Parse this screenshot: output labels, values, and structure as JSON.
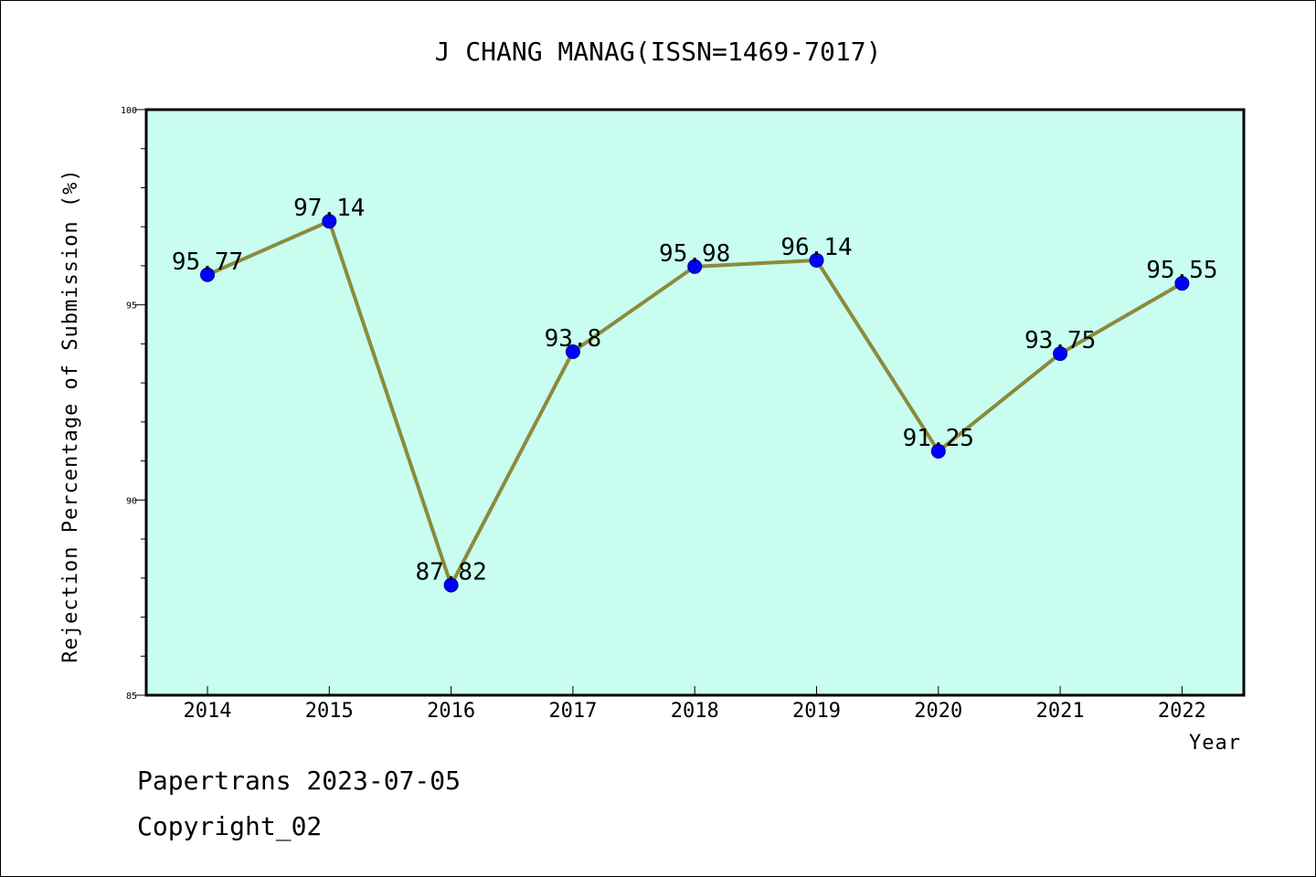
{
  "chart_data": {
    "type": "line",
    "title": "J CHANG MANAG(ISSN=1469-7017)",
    "xlabel": "Year",
    "ylabel": "Rejection Percentage of Submission (%)",
    "categories": [
      "2014",
      "2015",
      "2016",
      "2017",
      "2018",
      "2019",
      "2020",
      "2021",
      "2022"
    ],
    "values": [
      95.77,
      97.14,
      87.82,
      93.8,
      95.98,
      96.14,
      91.25,
      93.75,
      95.55
    ],
    "data_labels": [
      "95.77",
      "97.14",
      "87.82",
      "93.8",
      "95.98",
      "96.14",
      "91.25",
      "93.75",
      "95.55"
    ],
    "ylim": [
      85,
      100
    ],
    "yticks": [
      "85",
      "90",
      "95",
      "100"
    ],
    "grid": false,
    "colors": {
      "plot_background": "#c8fdef",
      "line": "#8c8a3c",
      "marker": "#0000ff"
    }
  },
  "footer": {
    "line1": "Papertrans 2023-07-05",
    "line2": "Copyright_02"
  }
}
